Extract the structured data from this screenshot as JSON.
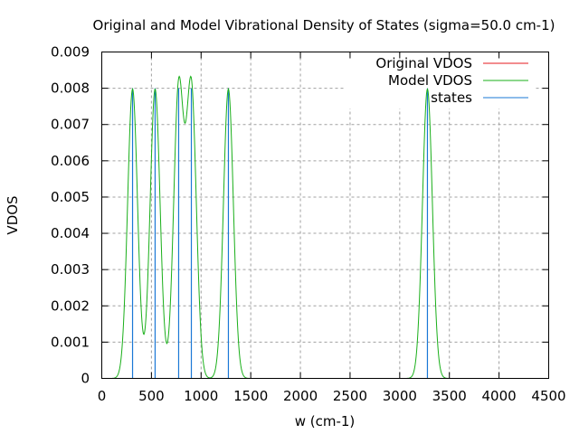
{
  "chart_data": {
    "type": "line",
    "title": "Original and Model Vibrational Density of States (sigma=50.0 cm-1)",
    "xlabel": "w (cm-1)",
    "ylabel": "VDOS",
    "xlim": [
      0,
      4500
    ],
    "ylim": [
      0,
      0.009
    ],
    "grid": true,
    "legend_position": "top-right",
    "xticks": [
      "0",
      "500",
      "1000",
      "1500",
      "2000",
      "2500",
      "3000",
      "3500",
      "4000",
      "4500"
    ],
    "xtick_values": [
      0,
      500,
      1000,
      1500,
      2000,
      2500,
      3000,
      3500,
      4000,
      4500
    ],
    "yticks": [
      "0",
      "0.001",
      "0.002",
      "0.003",
      "0.004",
      "0.005",
      "0.006",
      "0.007",
      "0.008",
      "0.009"
    ],
    "ytick_values": [
      0,
      0.001,
      0.002,
      0.003,
      0.004,
      0.005,
      0.006,
      0.007,
      0.008,
      0.009
    ],
    "sigma": 50.0,
    "state_positions": [
      310,
      537,
      774,
      902,
      1275,
      3279
    ],
    "state_height": 0.008,
    "series": [
      {
        "name": "Original VDOS",
        "color": "#e41a1c",
        "style": "line"
      },
      {
        "name": "Model VDOS",
        "color": "#1aaf1a",
        "style": "line"
      },
      {
        "name": "states",
        "color": "#1a78d6",
        "style": "impulses"
      }
    ]
  }
}
